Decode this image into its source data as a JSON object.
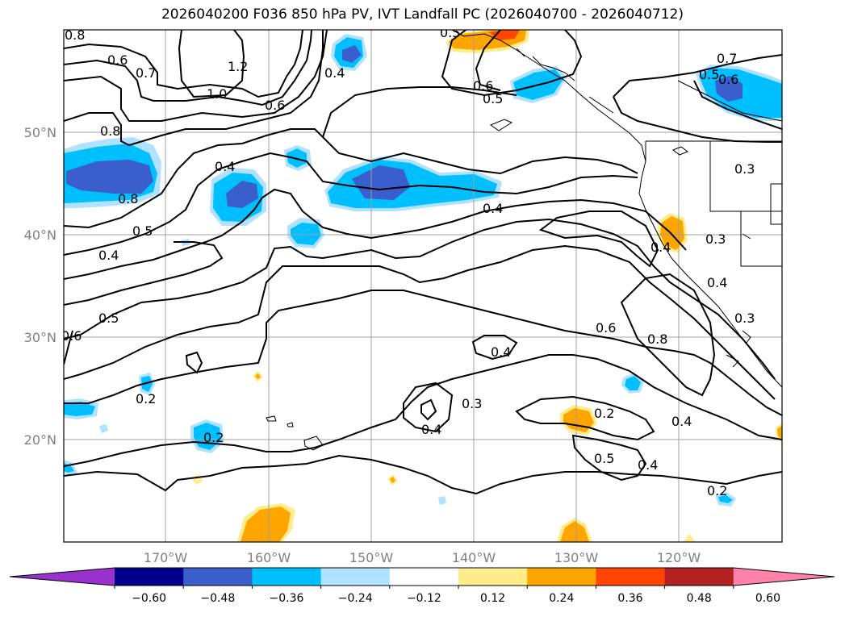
{
  "title": "2026040200 F036 850 hPa PV, IVT Landfall PC (2026040700 - 2026040712)",
  "lat_labels": [
    "50°N",
    "40°N",
    "30°N",
    "20°N"
  ],
  "lon_labels": [
    "170°W",
    "160°W",
    "150°W",
    "140°W",
    "130°W",
    "120°W"
  ],
  "contour_labels": [
    "0.8",
    "0.6",
    "0.7",
    "1.2",
    "1.0",
    "0.4",
    "0.6",
    "0.6",
    "0.5",
    "0.5",
    "0.7",
    "0.6",
    "0.5",
    "0.8",
    "0.4",
    "0.8",
    "0.5",
    "0.4",
    "0.4",
    "0.5",
    "0.6",
    "0.3",
    "0.4",
    "0.3",
    "0.4",
    "0.3",
    "0.6",
    "0.8",
    "0.4",
    "0.2",
    "0.4",
    "0.3",
    "0.2",
    "0.2",
    "0.4",
    "0.5",
    "0.4",
    "0.2"
  ],
  "colorbar": {
    "ticks": [
      "−0.60",
      "−0.48",
      "−0.36",
      "−0.24",
      "−0.12",
      "0.12",
      "0.24",
      "0.36",
      "0.48",
      "0.60"
    ],
    "colors": [
      "#9932cc",
      "#00008b",
      "#3a5fcd",
      "#00bfff",
      "#b0e2ff",
      "#ffffff",
      "#ffec8b",
      "#ffa500",
      "#ff4500",
      "#b22222",
      "#ff82ab"
    ]
  },
  "fill_colors": {
    "neg_light": "#b0e2ff",
    "neg_mid": "#00bfff",
    "neg_dark": "#3a5fcd",
    "pos_light": "#ffec8b",
    "pos_mid": "#ffa500",
    "pos_dark": "#ff4500"
  }
}
